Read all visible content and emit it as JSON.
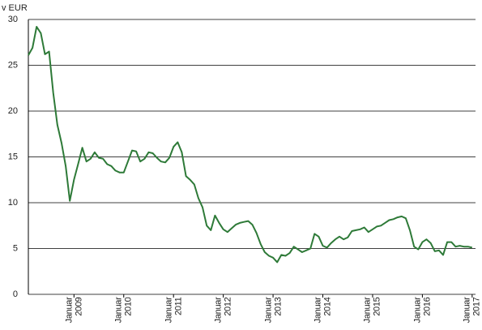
{
  "chart_data": {
    "type": "line",
    "y_label": "v EUR",
    "categories": [
      null,
      null,
      null,
      null,
      null,
      null,
      null,
      null,
      null,
      null,
      null,
      "Januar 2009",
      null,
      null,
      null,
      null,
      null,
      null,
      null,
      null,
      null,
      null,
      null,
      "Januar 2010",
      null,
      null,
      null,
      null,
      null,
      null,
      null,
      null,
      null,
      null,
      null,
      "Januar 2011",
      null,
      null,
      null,
      null,
      null,
      null,
      null,
      null,
      null,
      null,
      null,
      "Januar 2012",
      null,
      null,
      null,
      null,
      null,
      null,
      null,
      null,
      null,
      null,
      null,
      "Januar 2013",
      null,
      null,
      null,
      null,
      null,
      null,
      null,
      null,
      null,
      null,
      null,
      "Januar 2014",
      null,
      null,
      null,
      null,
      null,
      null,
      null,
      null,
      null,
      null,
      null,
      "Januar 2015",
      null,
      null,
      null,
      null,
      null,
      null,
      null,
      null,
      null,
      null,
      null,
      "Januar 2016",
      null,
      null,
      null,
      null,
      null,
      null,
      null,
      null,
      null,
      null,
      null,
      "Januar 2017"
    ],
    "series": [
      {
        "color": "#2e7a38",
        "values": [
          26.1,
          26.9,
          29.2,
          28.5,
          26.2,
          26.5,
          22,
          18.5,
          16.5,
          14,
          10.2,
          12.5,
          14.2,
          16.0,
          14.5,
          14.8,
          15.5,
          14.9,
          14.8,
          14.2,
          14.0,
          13.5,
          13.3,
          13.3,
          14.5,
          15.7,
          15.6,
          14.5,
          14.8,
          15.5,
          15.4,
          14.9,
          14.5,
          14.4,
          14.9,
          16.1,
          16.6,
          15.5,
          12.9,
          12.5,
          12.0,
          10.5,
          9.5,
          7.5,
          7.0,
          8.6,
          7.8,
          7.1,
          6.8,
          7.2,
          7.6,
          7.8,
          7.9,
          8.0,
          7.6,
          6.7,
          5.5,
          4.6,
          4.2,
          4.0,
          3.5,
          4.3,
          4.2,
          4.5,
          5.2,
          4.9,
          4.6,
          4.8,
          5.0,
          6.6,
          6.3,
          5.3,
          5.1,
          5.6,
          6.0,
          6.3,
          6.0,
          6.2,
          6.9,
          7.0,
          7.1,
          7.3,
          6.8,
          7.1,
          7.4,
          7.5,
          7.8,
          8.1,
          8.2,
          8.4,
          8.5,
          8.3,
          7.0,
          5.2,
          4.9,
          5.7,
          6.0,
          5.6,
          4.7,
          4.8,
          4.3,
          5.7,
          5.7,
          5.2,
          5.3,
          5.2,
          5.2,
          5.1
        ]
      }
    ],
    "ylim": [
      0,
      30
    ],
    "yticks": [
      0,
      5,
      10,
      15,
      20,
      25,
      30
    ],
    "grid": true
  }
}
